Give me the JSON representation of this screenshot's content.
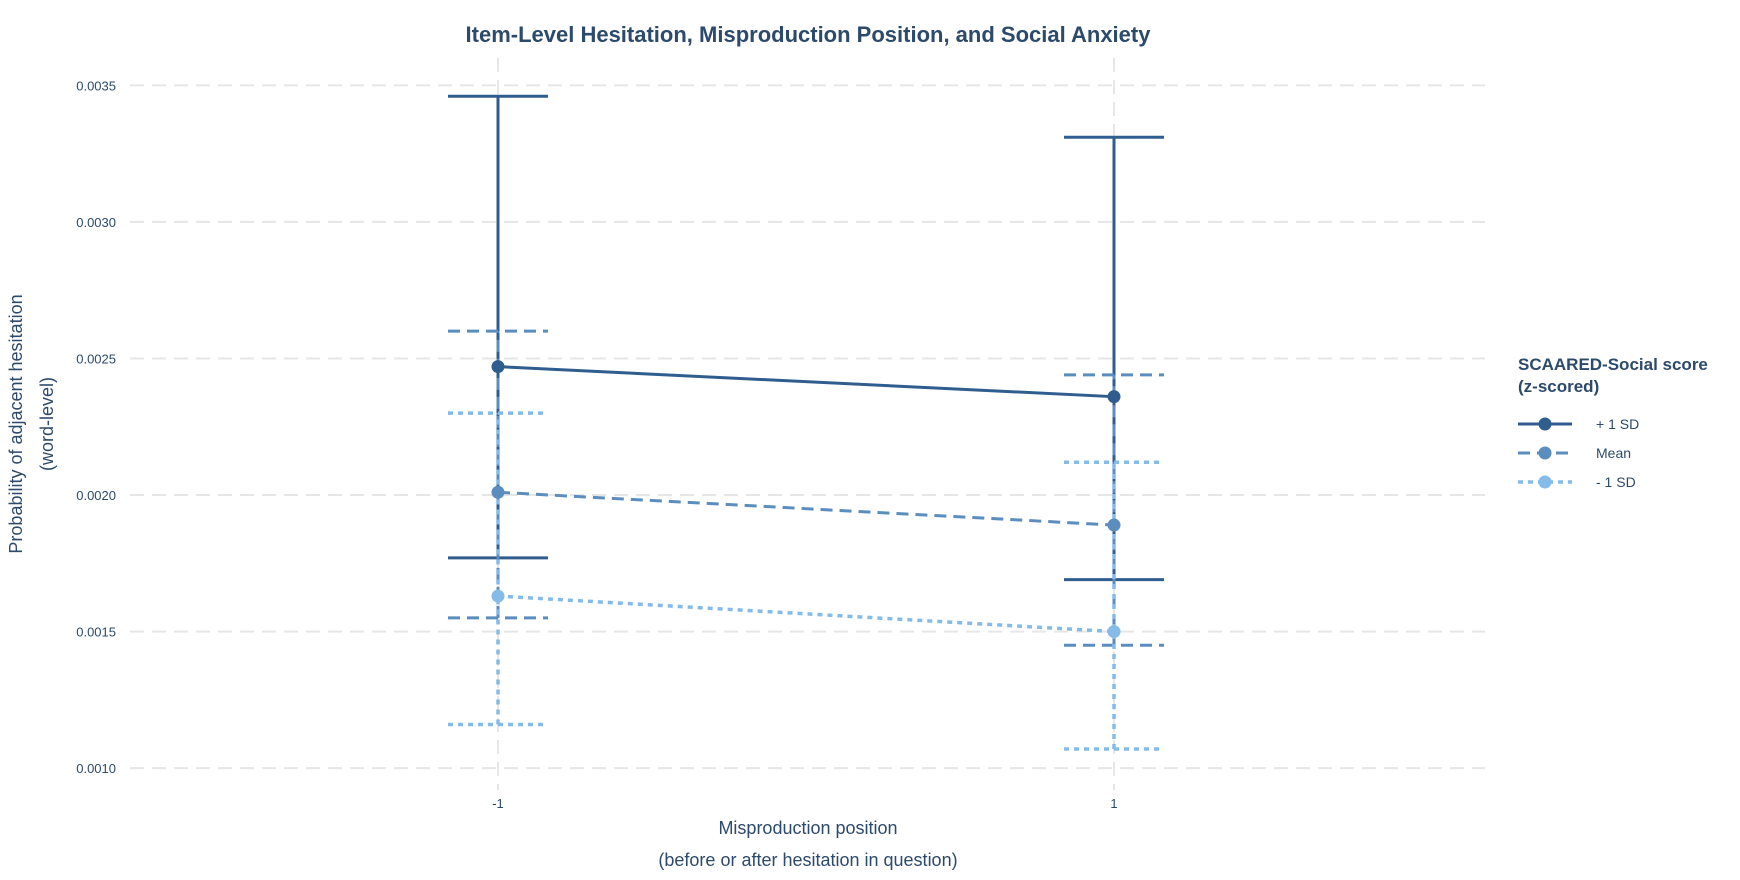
{
  "chart_data": {
    "type": "line",
    "title": "Item-Level Hesitation, Misproduction Position, and Social Anxiety",
    "xlabel_line1": "Misproduction position",
    "xlabel_line2": "(before or after hesitation in question)",
    "ylabel_line1": "Probability of adjacent hesitation",
    "ylabel_line2": "(word-level)",
    "categories": [
      "-1",
      "1"
    ],
    "ylim": [
      0.00092,
      0.0036
    ],
    "yticks": [
      0.001,
      0.0015,
      0.002,
      0.0025,
      0.003,
      0.0035
    ],
    "ytick_labels": [
      "0.0010",
      "0.0015",
      "0.0020",
      "0.0025",
      "0.0030",
      "0.0035"
    ],
    "grid": true,
    "legend": {
      "title_line1": "SCAARED-Social score",
      "title_line2": "(z-scored)",
      "placement": "right"
    },
    "series": [
      {
        "name": "+ 1 SD",
        "color": "#2f5d8e",
        "dash": "solid",
        "values": [
          0.00247,
          0.00236
        ],
        "lower": [
          0.00177,
          0.00169
        ],
        "upper": [
          0.00346,
          0.00331
        ]
      },
      {
        "name": "Mean",
        "color": "#5b8dbe",
        "dash": "dashed",
        "values": [
          0.00201,
          0.00189
        ],
        "lower": [
          0.00155,
          0.00145
        ],
        "upper": [
          0.0026,
          0.00244
        ]
      },
      {
        "name": "- 1 SD",
        "color": "#85bbe8",
        "dash": "dotted",
        "values": [
          0.00163,
          0.0015
        ],
        "lower": [
          0.00116,
          0.00107
        ],
        "upper": [
          0.0023,
          0.00212
        ]
      }
    ]
  }
}
